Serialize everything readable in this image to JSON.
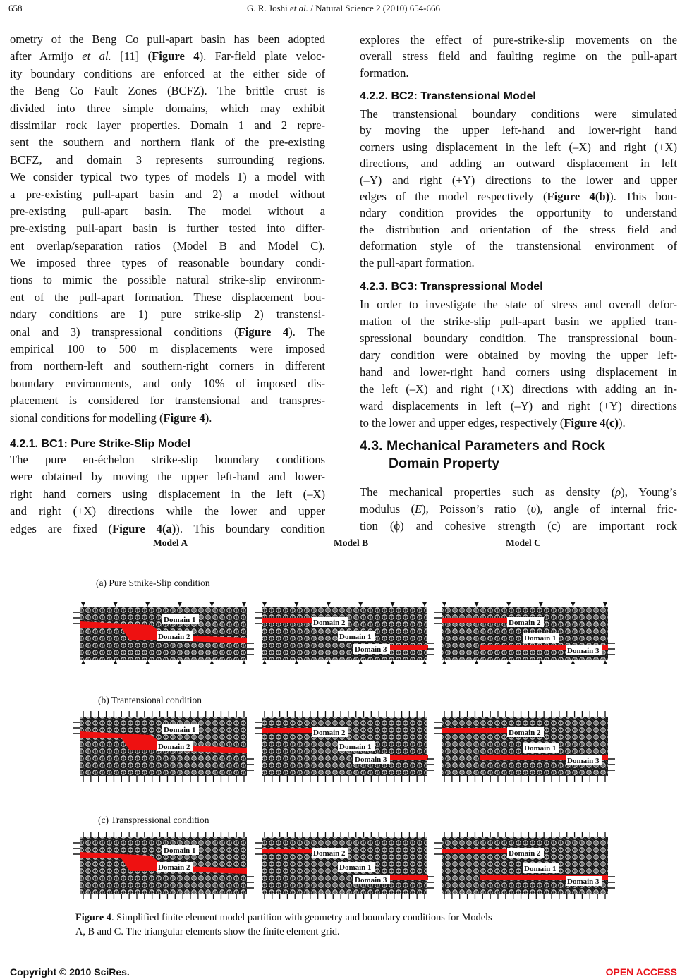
{
  "header": {
    "page_number": "658",
    "running_title": [
      {
        "t": "G. R. Joshi "
      },
      {
        "t": "et al.",
        "i": true
      },
      {
        "t": " / Natural Science 2 (2010) 654-666"
      }
    ]
  },
  "left_column": [
    {
      "type": "p",
      "lines": [
        "ometry of the Beng Co pull-apart basin has been adopted",
        [
          {
            "t": "after Armijo "
          },
          {
            "t": "et al.",
            "i": true
          },
          {
            "t": " [11] ("
          },
          {
            "t": "Figure 4",
            "b": true
          },
          {
            "t": "). Far-field plate veloc-"
          }
        ],
        "ity boundary conditions are enforced at the either side of",
        "the Beng Co Fault Zones (BCFZ). The brittle crust is",
        "divided into three simple domains, which may exhibit",
        "dissimilar rock layer properties. Domain 1 and 2 repre-",
        "sent the southern and northern flank of the pre-existing",
        "BCFZ, and domain 3 represents surrounding regions.",
        "We consider typical two types of models 1) a model with",
        "a pre-existing pull-apart basin and 2) a model without",
        "pre-existing pull-apart basin. The model without a",
        "pre-existing pull-apart basin is further tested into differ-",
        "ent overlap/separation ratios (Model B and Model C).",
        "We imposed three types of reasonable boundary condi-",
        "tions to mimic the possible natural strike-slip environm-",
        "ent of the pull-apart formation. These displacement bou-",
        "ndary conditions are 1) pure strike-slip 2) transtensi-",
        [
          {
            "t": "onal and 3) transpressional conditions ("
          },
          {
            "t": "Figure 4",
            "b": true
          },
          {
            "t": "). The"
          }
        ],
        "empirical 100 to 500 m displacements were imposed",
        "from northern-left and southern-right corners in different",
        "boundary environments, and only 10% of imposed dis-",
        "placement is considered for transtensional and transpres-",
        [
          {
            "t": "sional conditions for modelling ("
          },
          {
            "t": "Figure 4",
            "b": true
          },
          {
            "t": ")."
          }
        ]
      ]
    },
    {
      "type": "h",
      "text": "4.2.1. BC1: Pure Strike-Slip Model"
    },
    {
      "type": "p",
      "open": true,
      "lines": [
        "The pure en-échelon strike-slip boundary conditions",
        "were obtained by moving the upper left-hand and lower-",
        "right hand corners using displacement in the left (–X)",
        "and right (+X) directions while the lower and upper",
        [
          {
            "t": "edges are fixed ("
          },
          {
            "t": "Figure 4(a)",
            "b": true
          },
          {
            "t": "). This boundary condition"
          }
        ]
      ]
    }
  ],
  "right_column": [
    {
      "type": "p",
      "lines": [
        "explores the effect of pure-strike-slip movements on the",
        "overall stress field and faulting regime on the pull-apart",
        "formation."
      ]
    },
    {
      "type": "h",
      "text": "4.2.2. BC2: Transtensional Model"
    },
    {
      "type": "p",
      "lines": [
        "The transtensional boundary conditions were simulated",
        "by moving the upper left-hand and lower-right hand",
        "corners using displacement in the left (–X) and right (+X)",
        "directions, and adding an outward displacement in left",
        "(–Y) and right (+Y) directions to the lower and upper",
        [
          {
            "t": "edges of the model respectively ("
          },
          {
            "t": "Figure 4(b)",
            "b": true
          },
          {
            "t": "). This bou-"
          }
        ],
        "ndary condition provides the opportunity to understand",
        "the distribution and orientation of the stress field and",
        "deformation style of the transtensional environment of",
        "the pull-apart formation."
      ]
    },
    {
      "type": "h",
      "text": "4.2.3. BC3: Transpressional Model"
    },
    {
      "type": "p",
      "lines": [
        "In order to investigate the state of stress and overall defor-",
        "mation of the strike-slip pull-apart basin we applied tran-",
        "spressional boundary condition. The transpressional boun-",
        "dary condition were obtained by moving the upper left-",
        "hand and lower-right hand corners using displacement in",
        "the left (–X) and right (+X) directions with adding an in-",
        "ward displacements in left (–Y) and right (+Y) directions",
        [
          {
            "t": "to the lower and upper edges, respectively ("
          },
          {
            "t": "Figure 4(c)",
            "b": true
          },
          {
            "t": ")."
          }
        ]
      ]
    },
    {
      "type": "h2",
      "lines": [
        "4.3. Mechanical Parameters and Rock",
        "Domain Property"
      ]
    },
    {
      "type": "p",
      "open": true,
      "lines": [
        [
          {
            "t": "The mechanical properties such as density ("
          },
          {
            "t": "ρ",
            "i": true
          },
          {
            "t": "), Young’s"
          }
        ],
        [
          {
            "t": "modulus ("
          },
          {
            "t": "E",
            "i": true
          },
          {
            "t": "), Poisson’s ratio ("
          },
          {
            "t": "υ",
            "i": true
          },
          {
            "t": "), angle of internal fric-"
          }
        ],
        "tion (ϕ) and cohesive strength (c) are important rock"
      ]
    }
  ],
  "figure": {
    "models": [
      "Model A",
      "Model B",
      "Model C"
    ],
    "conditions": [
      "(a) Pure Stnike-Slip condition",
      "(b) Trantensional condition",
      "(c) Transpressional condition"
    ],
    "panel_domain_labels": {
      "model_a": [
        "Domain 1",
        "Domain 2"
      ],
      "model_b": [
        "Domain 2",
        "Domain 1",
        "Domain 3"
      ],
      "model_c": [
        "Domain 2",
        "Domain 1",
        "Domain 3"
      ]
    },
    "fault_color": "#ee1111",
    "mesh_color": "#1c1c1c",
    "caption": [
      {
        "t": "Figure 4",
        "b": true
      },
      {
        "t": ". Simplified finite element model partition with geometry and boundary conditions for Models"
      }
    ],
    "caption_line2": "A, B and C. The triangular elements show the finite element grid."
  },
  "footer": {
    "copyright": "Copyright © 2010 SciRes.",
    "open_access": "OPEN ACCESS",
    "open_access_color": "#e8121a"
  }
}
